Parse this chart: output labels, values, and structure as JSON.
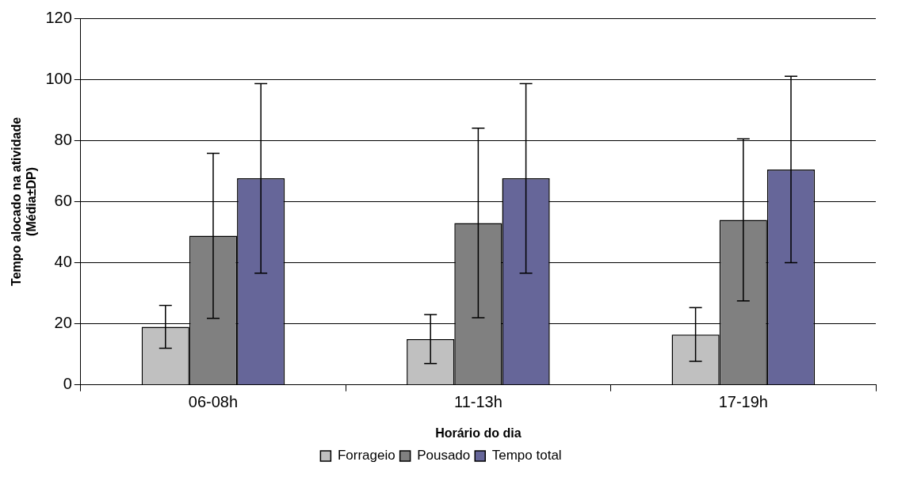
{
  "chart_data": {
    "type": "bar",
    "xlabel": "Horário do dia",
    "ylabel": "Tempo alocado na atividade\n(Média±DP)",
    "categories": [
      "06-08h",
      "11-13h",
      "17-19h"
    ],
    "series": [
      {
        "name": "Forrageio",
        "color": "#c0c0c0",
        "values": [
          19,
          15,
          16.5
        ],
        "errors": [
          7,
          8,
          8.8
        ]
      },
      {
        "name": "Pousado",
        "color": "#808080",
        "values": [
          48.8,
          53,
          54
        ],
        "errors": [
          27,
          31,
          26.5
        ]
      },
      {
        "name": "Tempo total",
        "color": "#666699",
        "values": [
          67.6,
          67.6,
          70.5
        ],
        "errors": [
          31,
          31,
          30.5
        ]
      }
    ],
    "ylim": [
      0,
      120
    ],
    "yticks": [
      0,
      20,
      40,
      60,
      80,
      100,
      120
    ],
    "grid": "y",
    "legend": "bottom"
  }
}
